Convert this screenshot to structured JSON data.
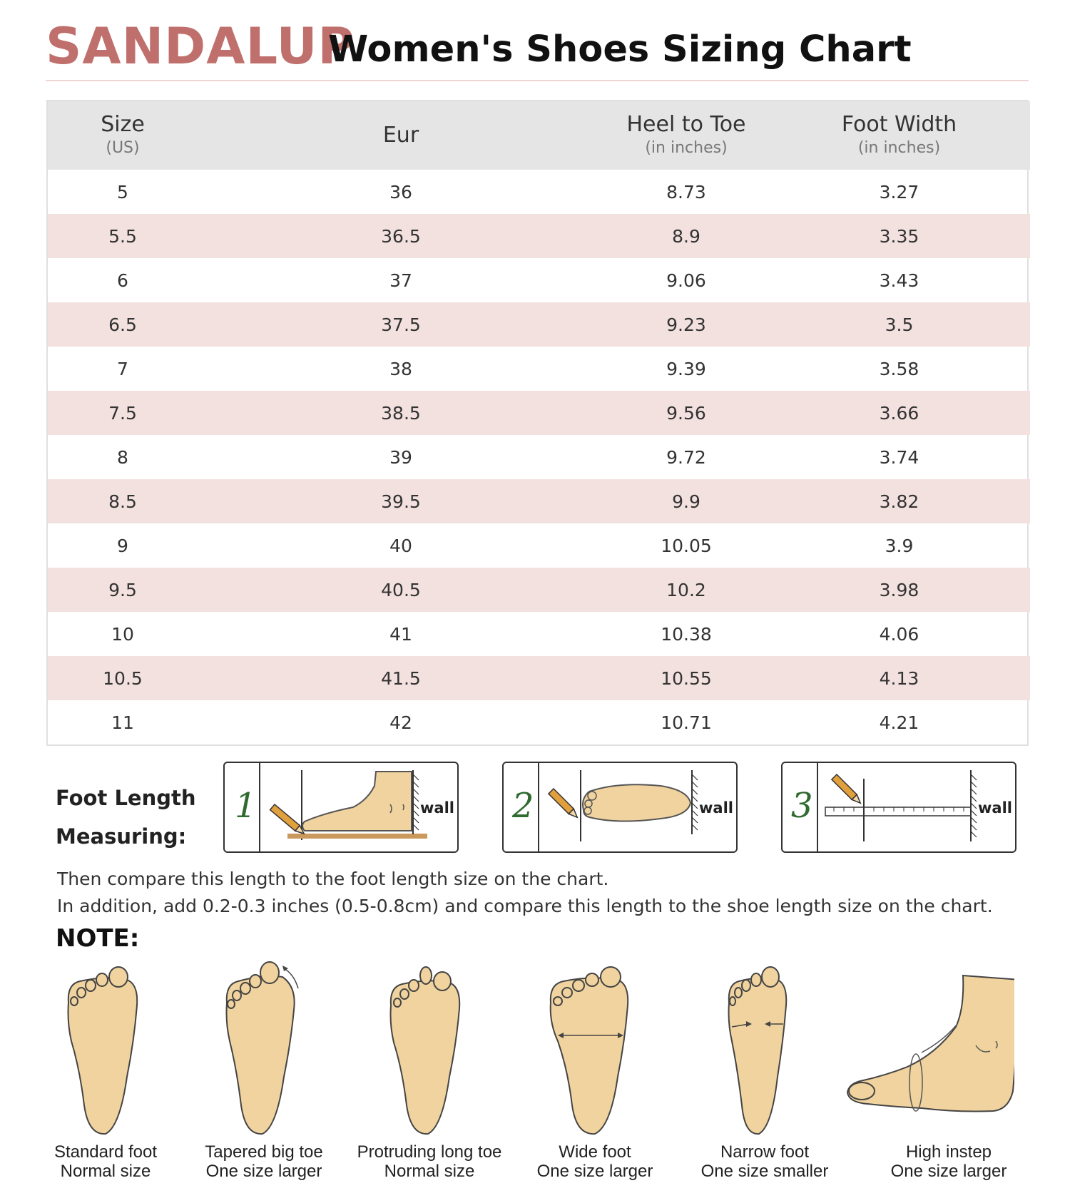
{
  "header": {
    "brand": "SANDALUP",
    "title": "Women's Shoes Sizing Chart"
  },
  "table": {
    "columns": [
      {
        "label": "Size",
        "sub": "(US)"
      },
      {
        "label": "Eur",
        "sub": ""
      },
      {
        "label": "Heel to Toe",
        "sub": "(in inches)"
      },
      {
        "label": "Foot Width",
        "sub": "(in inches)"
      }
    ],
    "rows": [
      [
        "5",
        "36",
        "8.73",
        "3.27"
      ],
      [
        "5.5",
        "36.5",
        "8.9",
        "3.35"
      ],
      [
        "6",
        "37",
        "9.06",
        "3.43"
      ],
      [
        "6.5",
        "37.5",
        "9.23",
        "3.5"
      ],
      [
        "7",
        "38",
        "9.39",
        "3.58"
      ],
      [
        "7.5",
        "38.5",
        "9.56",
        "3.66"
      ],
      [
        "8",
        "39",
        "9.72",
        "3.74"
      ],
      [
        "8.5",
        "39.5",
        "9.9",
        "3.82"
      ],
      [
        "9",
        "40",
        "10.05",
        "3.9"
      ],
      [
        "9.5",
        "40.5",
        "10.2",
        "3.98"
      ],
      [
        "10",
        "41",
        "10.38",
        "4.06"
      ],
      [
        "10.5",
        "41.5",
        "10.55",
        "4.13"
      ],
      [
        "11",
        "42",
        "10.71",
        "4.21"
      ]
    ]
  },
  "measuring": {
    "label_line1": "Foot Length",
    "label_line2": "Measuring:",
    "steps": [
      {
        "number": "1",
        "wall": "wall"
      },
      {
        "number": "2",
        "wall": "wall"
      },
      {
        "number": "3",
        "wall": "wall"
      }
    ],
    "compare_line1": "Then compare this length to the foot length size on the chart.",
    "compare_line2": "In addition, add 0.2-0.3 inches (0.5-0.8cm) and compare this length to the shoe length size on the chart."
  },
  "note": {
    "title": "NOTE:",
    "feet": [
      {
        "name": "Standard foot",
        "advice": "Normal size",
        "icon": "standard-foot-icon"
      },
      {
        "name": "Tapered big toe",
        "advice": "One size larger",
        "icon": "tapered-big-toe-foot-icon"
      },
      {
        "name": "Protruding long toe",
        "advice": "Normal size",
        "icon": "protruding-long-toe-foot-icon"
      },
      {
        "name": "Wide foot",
        "advice": "One size larger",
        "icon": "wide-foot-icon"
      },
      {
        "name": "Narrow foot",
        "advice": "One size smaller",
        "icon": "narrow-foot-icon"
      },
      {
        "name": "High instep",
        "advice": "One size larger",
        "icon": "high-instep-foot-icon"
      }
    ]
  },
  "colors": {
    "brand": "#c0706c",
    "row_stripe": "#f3e1df",
    "header_bg": "#e5e5e5",
    "skin": "#f0d39e",
    "pencil": "#e2a03c"
  }
}
